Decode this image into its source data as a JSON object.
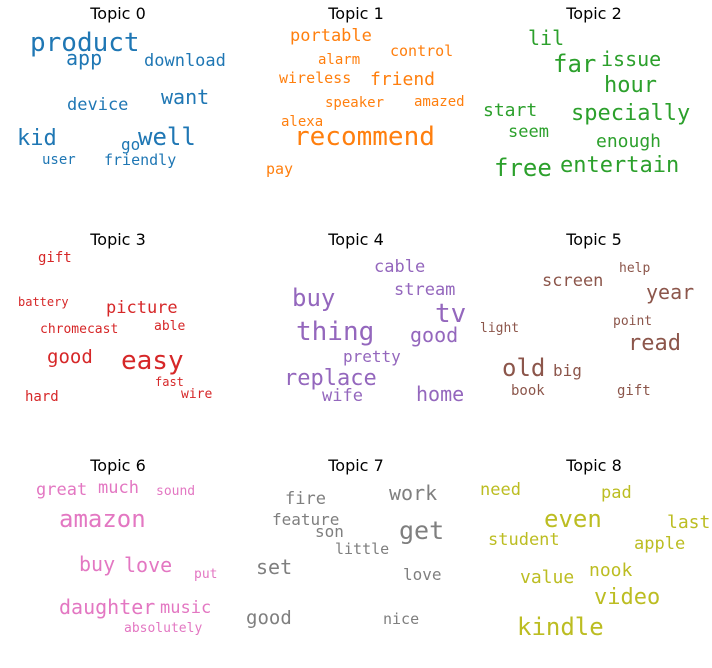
{
  "chart_data": {
    "type": "wordcloud",
    "panels": [
      {
        "title": "Topic 0",
        "color": "#1f77b4",
        "words": [
          "product",
          "app",
          "download",
          "want",
          "device",
          "well",
          "kid",
          "go",
          "user",
          "friendly"
        ]
      },
      {
        "title": "Topic 1",
        "color": "#ff7f0e",
        "words": [
          "portable",
          "control",
          "alarm",
          "friend",
          "wireless",
          "speaker",
          "amazed",
          "alexa",
          "recommend",
          "pay"
        ]
      },
      {
        "title": "Topic 2",
        "color": "#2ca02c",
        "words": [
          "lil",
          "far",
          "issue",
          "hour",
          "start",
          "specially",
          "seem",
          "enough",
          "free",
          "entertain"
        ]
      },
      {
        "title": "Topic 3",
        "color": "#d62728",
        "words": [
          "gift",
          "battery",
          "picture",
          "chromecast",
          "able",
          "good",
          "easy",
          "fast",
          "hard",
          "wire"
        ]
      },
      {
        "title": "Topic 4",
        "color": "#9467bd",
        "words": [
          "cable",
          "buy",
          "stream",
          "tv",
          "thing",
          "good",
          "pretty",
          "replace",
          "wife",
          "home"
        ]
      },
      {
        "title": "Topic 5",
        "color": "#8c564b",
        "words": [
          "help",
          "screen",
          "year",
          "point",
          "light",
          "read",
          "old",
          "big",
          "book",
          "gift"
        ]
      },
      {
        "title": "Topic 6",
        "color": "#e377c2",
        "words": [
          "great",
          "much",
          "sound",
          "amazon",
          "buy",
          "love",
          "put",
          "daughter",
          "music",
          "absolutely"
        ]
      },
      {
        "title": "Topic 7",
        "color": "#7f7f7f",
        "words": [
          "fire",
          "work",
          "feature",
          "son",
          "get",
          "little",
          "set",
          "love",
          "good",
          "nice"
        ]
      },
      {
        "title": "Topic 8",
        "color": "#bcbd22",
        "words": [
          "need",
          "pad",
          "even",
          "last",
          "student",
          "apple",
          "nook",
          "value",
          "video",
          "kindle"
        ]
      }
    ]
  }
}
